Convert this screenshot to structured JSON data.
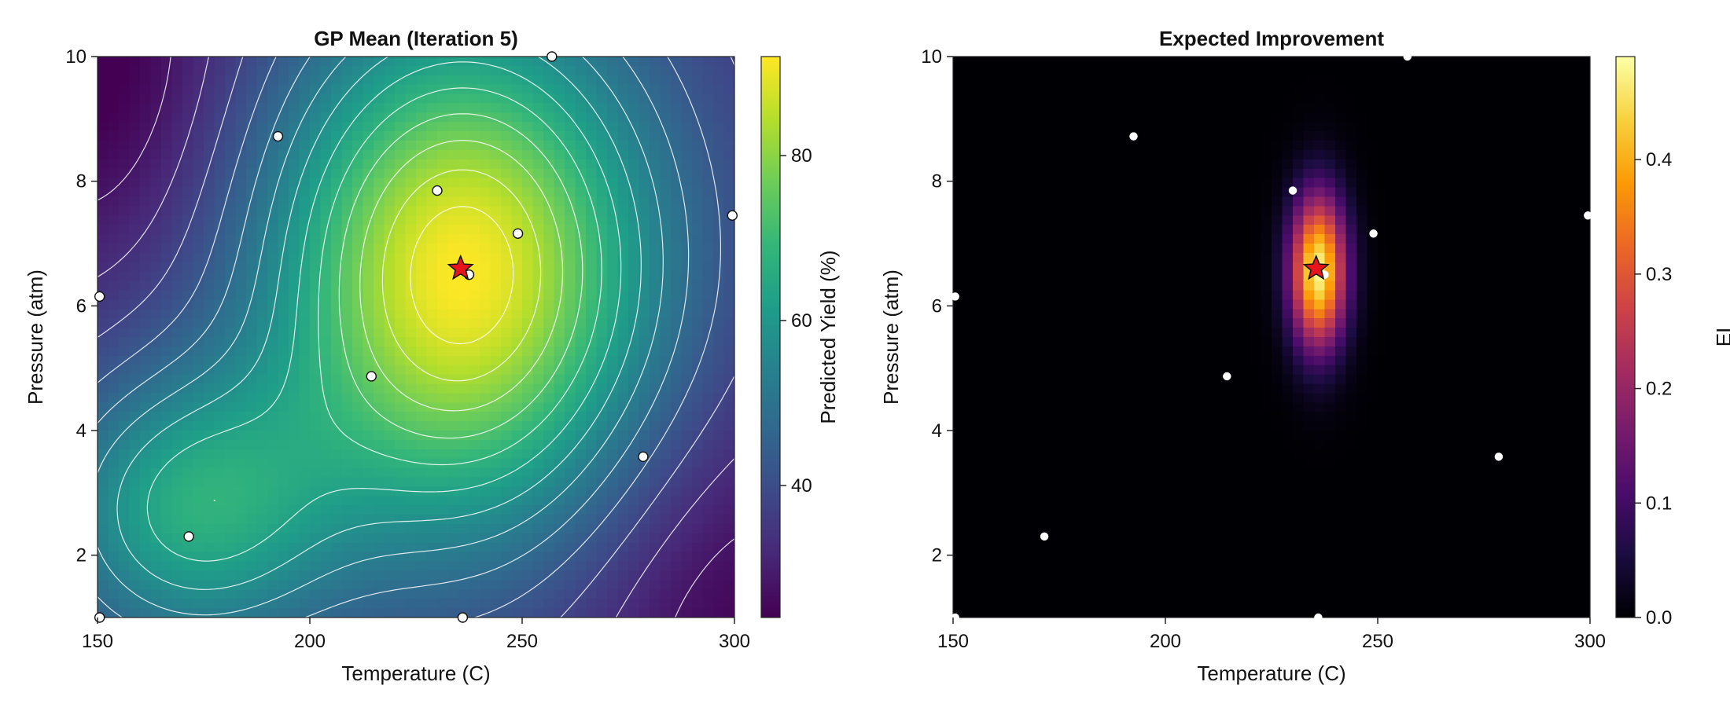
{
  "chart_data": [
    {
      "type": "heatmap",
      "title": "GP Mean (Iteration 5)",
      "xlabel": "Temperature (C)",
      "ylabel": "Pressure (atm)",
      "xlim": [
        150,
        300
      ],
      "ylim": [
        1,
        10
      ],
      "xticks": [
        "150",
        "200",
        "250",
        "300"
      ],
      "yticks": [
        "2",
        "4",
        "6",
        "8",
        "10"
      ],
      "colormap": "viridis",
      "contours": true,
      "colorbar": {
        "label": "Predicted Yield (%)",
        "range": [
          24,
          92
        ],
        "ticks": [
          "40",
          "60",
          "80"
        ]
      },
      "surface": {
        "base": 34,
        "components": [
          {
            "x0": 236,
            "y0": 6.5,
            "sx": 32,
            "sy": 2.9,
            "amp": 58
          },
          {
            "x0": 172,
            "y0": 2.7,
            "sx": 24,
            "sy": 1.6,
            "amp": 30
          },
          {
            "x0": 150,
            "y0": 9.8,
            "sx": 22,
            "sy": 2.2,
            "amp": -12
          },
          {
            "x0": 300,
            "y0": 1.0,
            "sx": 28,
            "sy": 2.4,
            "amp": -10
          }
        ]
      },
      "observations": [
        {
          "x": 150.5,
          "y": 1.0
        },
        {
          "x": 150.5,
          "y": 6.15
        },
        {
          "x": 171.5,
          "y": 2.3
        },
        {
          "x": 192.5,
          "y": 8.72
        },
        {
          "x": 214.5,
          "y": 4.87
        },
        {
          "x": 230.0,
          "y": 7.85
        },
        {
          "x": 236.0,
          "y": 1.0
        },
        {
          "x": 237.5,
          "y": 6.5
        },
        {
          "x": 249.0,
          "y": 7.16
        },
        {
          "x": 257.0,
          "y": 10.0
        },
        {
          "x": 278.5,
          "y": 3.58
        },
        {
          "x": 299.5,
          "y": 7.45
        }
      ],
      "best_point": {
        "x": 235.5,
        "y": 6.6,
        "marker": "star",
        "color": "#e8141c"
      }
    },
    {
      "type": "heatmap",
      "title": "Expected Improvement",
      "xlabel": "Temperature (C)",
      "ylabel": "Pressure (atm)",
      "xlim": [
        150,
        300
      ],
      "ylim": [
        1,
        10
      ],
      "xticks": [
        "150",
        "200",
        "250",
        "300"
      ],
      "yticks": [
        "2",
        "4",
        "6",
        "8",
        "10"
      ],
      "colormap": "inferno",
      "colorbar": {
        "label": "EI",
        "range": [
          0,
          0.49
        ],
        "ticks": [
          "0.0",
          "0.1",
          "0.2",
          "0.3",
          "0.4"
        ]
      },
      "surface": {
        "base": 0,
        "components": [
          {
            "x0": 236,
            "y0": 6.55,
            "sx": 4.5,
            "sy": 0.85,
            "amp": 0.48
          }
        ]
      },
      "observations": [
        {
          "x": 150.5,
          "y": 1.0
        },
        {
          "x": 150.5,
          "y": 6.15
        },
        {
          "x": 171.5,
          "y": 2.3
        },
        {
          "x": 192.5,
          "y": 8.72
        },
        {
          "x": 214.5,
          "y": 4.87
        },
        {
          "x": 230.0,
          "y": 7.85
        },
        {
          "x": 236.0,
          "y": 1.0
        },
        {
          "x": 237.5,
          "y": 6.5
        },
        {
          "x": 249.0,
          "y": 7.16
        },
        {
          "x": 257.0,
          "y": 10.0
        },
        {
          "x": 278.5,
          "y": 3.58
        },
        {
          "x": 299.5,
          "y": 7.45
        }
      ],
      "best_point": {
        "x": 235.5,
        "y": 6.6,
        "marker": "star",
        "color": "#e8141c"
      }
    }
  ]
}
